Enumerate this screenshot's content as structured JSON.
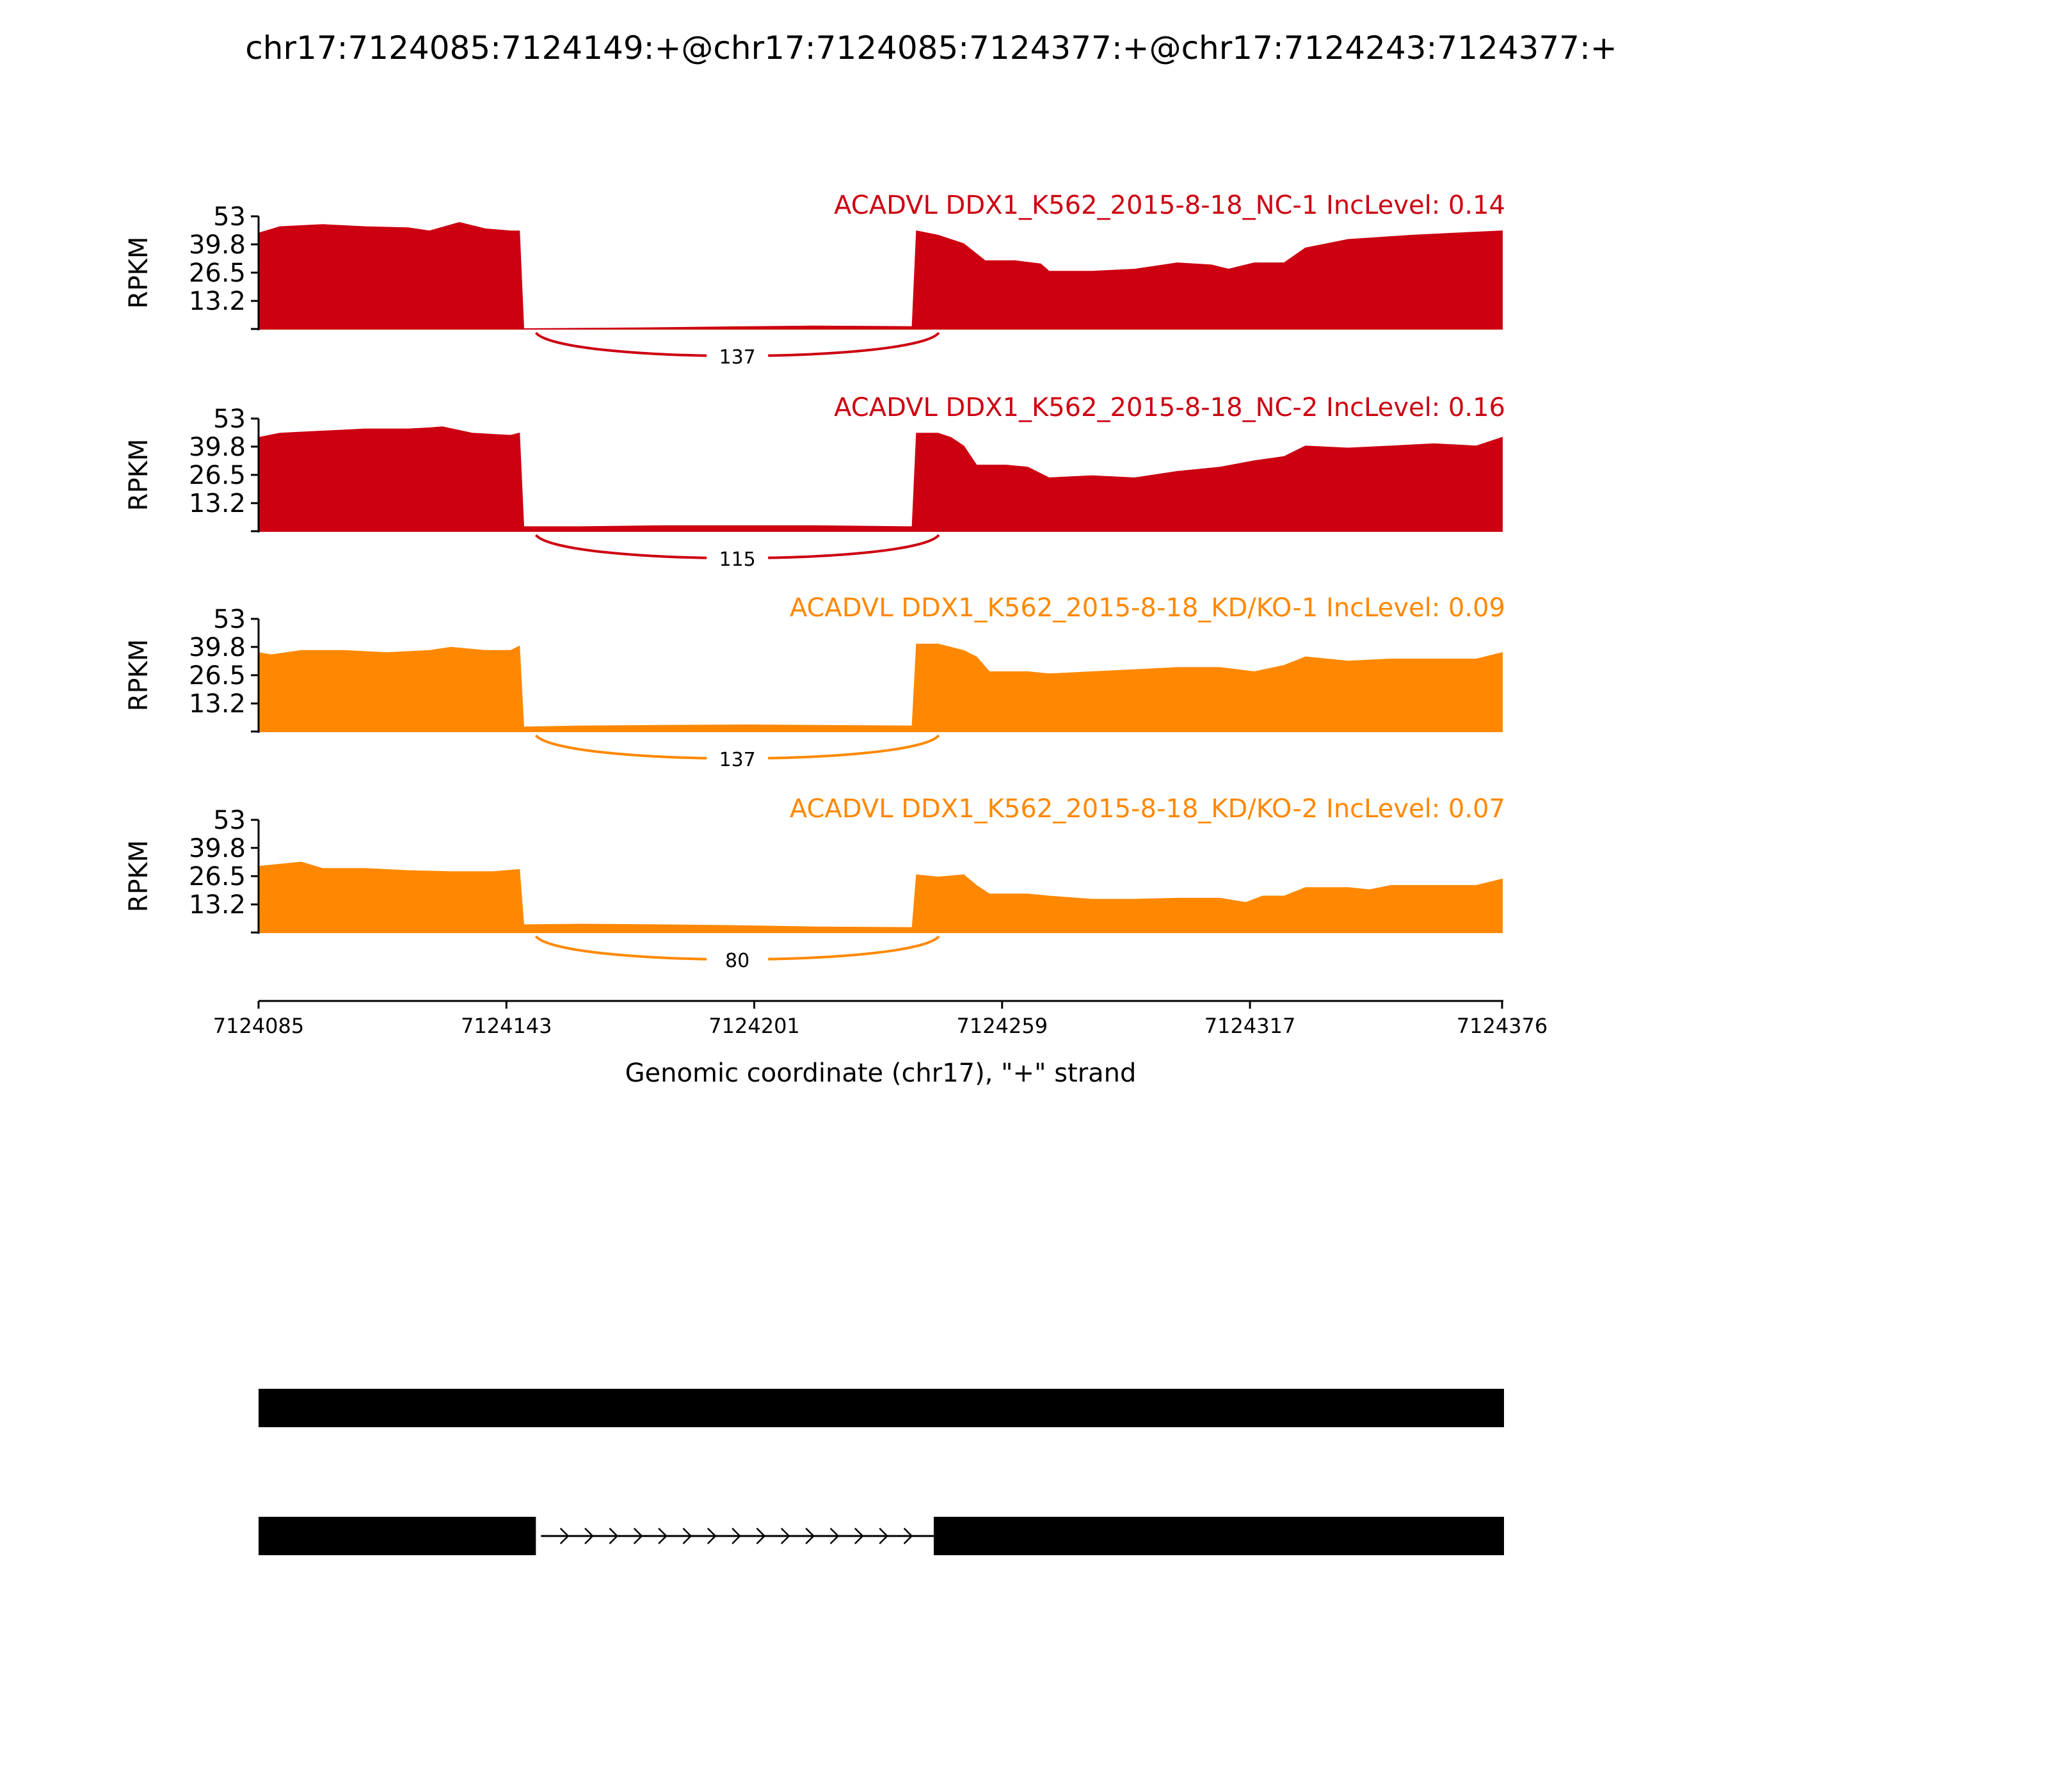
{
  "title": "chr17:7124085:7124149:+@chr17:7124085:7124377:+@chr17:7124243:7124377:+",
  "colors": {
    "nc": "#cc0011",
    "kd": "#ff8800",
    "axis": "#000000",
    "model": "#000000"
  },
  "chart_data": {
    "type": "area",
    "title": "chr17:7124085:7124149:+@chr17:7124085:7124377:+@chr17:7124243:7124377:+",
    "ylabel": "RPKM",
    "xlabel": "Genomic coordinate (chr17), \"+\" strand",
    "xlim": [
      7124085,
      7124376
    ],
    "ylim": [
      0,
      53
    ],
    "yticks": [
      "53",
      "39.8",
      "26.5",
      "13.2"
    ],
    "ytick_values": [
      53,
      39.8,
      26.5,
      13.2
    ],
    "xticks": [
      "7124085",
      "7124143",
      "7124201",
      "7124259",
      "7124317",
      "7124376"
    ],
    "xtick_values": [
      7124085,
      7124143,
      7124201,
      7124259,
      7124317,
      7124376
    ],
    "series": [
      {
        "name": "ACADVL DDX1_K562_2015-8-18_NC-1 IncLevel: 0.14",
        "color_key": "nc",
        "junction": {
          "start": 7124149,
          "end": 7124243,
          "count": "137"
        },
        "points": [
          [
            7124085,
            45
          ],
          [
            7124090,
            48
          ],
          [
            7124100,
            49
          ],
          [
            7124110,
            48
          ],
          [
            7124120,
            47.5
          ],
          [
            7124125,
            46
          ],
          [
            7124132,
            50
          ],
          [
            7124138,
            47
          ],
          [
            7124144,
            46
          ],
          [
            7124146,
            46
          ],
          [
            7124147,
            0
          ],
          [
            7124180,
            0.5
          ],
          [
            7124200,
            1
          ],
          [
            7124215,
            1.3
          ],
          [
            7124238,
            1
          ],
          [
            7124239,
            46
          ],
          [
            7124244,
            44
          ],
          [
            7124250,
            40
          ],
          [
            7124255,
            32
          ],
          [
            7124262,
            32
          ],
          [
            7124268,
            30.5
          ],
          [
            7124270,
            27
          ],
          [
            7124280,
            27
          ],
          [
            7124290,
            28
          ],
          [
            7124300,
            31
          ],
          [
            7124308,
            30
          ],
          [
            7124312,
            28
          ],
          [
            7124318,
            31
          ],
          [
            7124325,
            31
          ],
          [
            7124330,
            38
          ],
          [
            7124340,
            42
          ],
          [
            7124355,
            44
          ],
          [
            7124365,
            45
          ],
          [
            7124376,
            46
          ],
          [
            7124376,
            0
          ]
        ]
      },
      {
        "name": "ACADVL DDX1_K562_2015-8-18_NC-2 IncLevel: 0.16",
        "color_key": "nc",
        "junction": {
          "start": 7124149,
          "end": 7124243,
          "count": "115"
        },
        "points": [
          [
            7124085,
            44
          ],
          [
            7124090,
            46
          ],
          [
            7124100,
            47
          ],
          [
            7124110,
            48
          ],
          [
            7124120,
            48
          ],
          [
            7124125,
            48.5
          ],
          [
            7124128,
            49
          ],
          [
            7124135,
            46
          ],
          [
            7124144,
            45
          ],
          [
            7124146,
            46
          ],
          [
            7124147,
            2
          ],
          [
            7124160,
            2
          ],
          [
            7124180,
            2.5
          ],
          [
            7124200,
            2.5
          ],
          [
            7124215,
            2.5
          ],
          [
            7124238,
            2
          ],
          [
            7124239,
            46
          ],
          [
            7124244,
            46
          ],
          [
            7124247,
            44
          ],
          [
            7124250,
            40
          ],
          [
            7124253,
            31
          ],
          [
            7124260,
            31
          ],
          [
            7124265,
            30
          ],
          [
            7124270,
            25
          ],
          [
            7124280,
            26
          ],
          [
            7124290,
            25
          ],
          [
            7124300,
            28
          ],
          [
            7124310,
            30
          ],
          [
            7124318,
            33
          ],
          [
            7124325,
            35
          ],
          [
            7124330,
            40
          ],
          [
            7124340,
            39
          ],
          [
            7124350,
            40
          ],
          [
            7124360,
            41
          ],
          [
            7124370,
            40
          ],
          [
            7124376,
            44
          ],
          [
            7124376,
            0
          ]
        ]
      },
      {
        "name": "ACADVL DDX1_K562_2015-8-18_KD/KO-1 IncLevel: 0.09",
        "color_key": "kd",
        "junction": {
          "start": 7124149,
          "end": 7124243,
          "count": "137"
        },
        "points": [
          [
            7124085,
            37
          ],
          [
            7124088,
            36
          ],
          [
            7124095,
            38
          ],
          [
            7124105,
            38
          ],
          [
            7124115,
            37
          ],
          [
            7124125,
            38
          ],
          [
            7124130,
            39.5
          ],
          [
            7124138,
            38
          ],
          [
            7124144,
            38
          ],
          [
            7124146,
            40
          ],
          [
            7124147,
            2
          ],
          [
            7124160,
            2.5
          ],
          [
            7124180,
            2.8
          ],
          [
            7124200,
            3
          ],
          [
            7124215,
            2.8
          ],
          [
            7124238,
            2.5
          ],
          [
            7124239,
            41
          ],
          [
            7124244,
            41
          ],
          [
            7124250,
            38
          ],
          [
            7124253,
            35
          ],
          [
            7124256,
            28
          ],
          [
            7124265,
            28
          ],
          [
            7124270,
            27
          ],
          [
            7124280,
            28
          ],
          [
            7124290,
            29
          ],
          [
            7124300,
            30
          ],
          [
            7124310,
            30
          ],
          [
            7124318,
            28
          ],
          [
            7124325,
            31
          ],
          [
            7124330,
            35
          ],
          [
            7124340,
            33
          ],
          [
            7124350,
            34
          ],
          [
            7124360,
            34
          ],
          [
            7124370,
            34
          ],
          [
            7124376,
            37
          ],
          [
            7124376,
            0
          ]
        ]
      },
      {
        "name": "ACADVL DDX1_K562_2015-8-18_KD/KO-2 IncLevel: 0.07",
        "color_key": "kd",
        "junction": {
          "start": 7124149,
          "end": 7124243,
          "count": "80"
        },
        "points": [
          [
            7124085,
            31
          ],
          [
            7124090,
            32
          ],
          [
            7124095,
            33
          ],
          [
            7124100,
            30
          ],
          [
            7124110,
            30
          ],
          [
            7124120,
            29
          ],
          [
            7124130,
            28.5
          ],
          [
            7124140,
            28.5
          ],
          [
            7124146,
            29.5
          ],
          [
            7124147,
            3.5
          ],
          [
            7124160,
            3.8
          ],
          [
            7124180,
            3.5
          ],
          [
            7124200,
            3
          ],
          [
            7124215,
            2.5
          ],
          [
            7124238,
            2.2
          ],
          [
            7124239,
            27
          ],
          [
            7124244,
            26
          ],
          [
            7124250,
            27
          ],
          [
            7124253,
            22
          ],
          [
            7124256,
            18
          ],
          [
            7124265,
            18
          ],
          [
            7124270,
            17
          ],
          [
            7124280,
            15.5
          ],
          [
            7124290,
            15.5
          ],
          [
            7124300,
            16
          ],
          [
            7124310,
            16
          ],
          [
            7124316,
            14
          ],
          [
            7124320,
            17
          ],
          [
            7124325,
            17
          ],
          [
            7124330,
            21
          ],
          [
            7124340,
            21
          ],
          [
            7124345,
            20
          ],
          [
            7124350,
            22
          ],
          [
            7124360,
            22
          ],
          [
            7124370,
            22
          ],
          [
            7124376,
            25
          ],
          [
            7124376,
            0
          ]
        ]
      }
    ],
    "isoforms": [
      {
        "exons": [
          [
            7124085,
            7124376
          ]
        ]
      },
      {
        "exons": [
          [
            7124085,
            7124149
          ],
          [
            7124243,
            7124376
          ]
        ]
      }
    ]
  }
}
